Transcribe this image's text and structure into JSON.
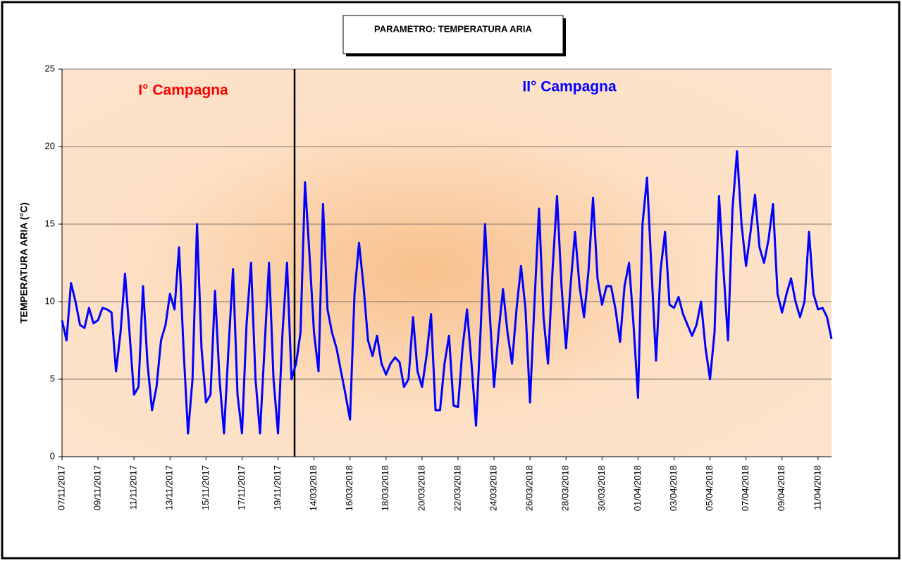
{
  "chart_data": {
    "type": "line",
    "title": "PARAMETRO: TEMPERATURA ARIA",
    "y_label": "TEMPERATURA ARIA (°C)",
    "annotations": [
      {
        "text": "I° Campagna",
        "color": "#ff0000"
      },
      {
        "text": "II° Campagna",
        "color": "#0000ff"
      }
    ],
    "categories": [
      "07/11/2017",
      null,
      null,
      null,
      null,
      null,
      null,
      null,
      "09/11/2017",
      null,
      null,
      null,
      null,
      null,
      null,
      null,
      "11/11/2017",
      null,
      null,
      null,
      null,
      null,
      null,
      null,
      "13/11/2017",
      null,
      null,
      null,
      null,
      null,
      null,
      null,
      "15/11/2017",
      null,
      null,
      null,
      null,
      null,
      null,
      null,
      "17/11/2017",
      null,
      null,
      null,
      null,
      null,
      null,
      null,
      "19/11/2017",
      null,
      null,
      null,
      null,
      null,
      null,
      null,
      "14/03/2018",
      null,
      null,
      null,
      null,
      null,
      null,
      null,
      "16/03/2018",
      null,
      null,
      null,
      null,
      null,
      null,
      null,
      "18/03/2018",
      null,
      null,
      null,
      null,
      null,
      null,
      null,
      "20/03/2018",
      null,
      null,
      null,
      null,
      null,
      null,
      null,
      "22/03/2018",
      null,
      null,
      null,
      null,
      null,
      null,
      null,
      "24/03/2018",
      null,
      null,
      null,
      null,
      null,
      null,
      null,
      "26/03/2018",
      null,
      null,
      null,
      null,
      null,
      null,
      null,
      "28/03/2018",
      null,
      null,
      null,
      null,
      null,
      null,
      null,
      "30/03/2018",
      null,
      null,
      null,
      null,
      null,
      null,
      null,
      "01/04/2018",
      null,
      null,
      null,
      null,
      null,
      null,
      null,
      "03/04/2018",
      null,
      null,
      null,
      null,
      null,
      null,
      null,
      "05/04/2018",
      null,
      null,
      null,
      null,
      null,
      null,
      null,
      "07/04/2018",
      null,
      null,
      null,
      null,
      null,
      null,
      null,
      "09/04/2018",
      null,
      null,
      null,
      null,
      null,
      null,
      null,
      "11/04/2018",
      null,
      null,
      null
    ],
    "series": [
      {
        "color": "#0000ff",
        "values": [
          8.8,
          7.5,
          11.2,
          10,
          8.5,
          8.3,
          9.6,
          8.6,
          8.8,
          9.6,
          9.5,
          9.3,
          5.5,
          8,
          11.8,
          8,
          4,
          4.5,
          11,
          6,
          3,
          4.5,
          7.5,
          8.5,
          10.5,
          9.5,
          13.5,
          7,
          1.5,
          5,
          15,
          7,
          3.5,
          4,
          10.7,
          5,
          1.5,
          7,
          12.1,
          4,
          1.5,
          8.5,
          12.5,
          5,
          1.5,
          7,
          12.5,
          5,
          1.5,
          8,
          12.5,
          5,
          6,
          8,
          17.7,
          13,
          8,
          5.5,
          16.3,
          9.5,
          8,
          7,
          5.5,
          4,
          2.4,
          10.5,
          13.8,
          11,
          7.5,
          6.5,
          7.8,
          6,
          5.3,
          6,
          6.4,
          6.1,
          4.5,
          5,
          9,
          5.5,
          4.5,
          6.5,
          9.2,
          3,
          3,
          6,
          7.8,
          3.3,
          3.2,
          7,
          9.5,
          6,
          2,
          8,
          15,
          9.5,
          4.5,
          8,
          10.8,
          8,
          6,
          9.5,
          12.3,
          9.5,
          3.5,
          10,
          16,
          9,
          6,
          12,
          16.8,
          11,
          7,
          11,
          14.5,
          11,
          9,
          12,
          16.7,
          11.5,
          9.8,
          11,
          11,
          9.5,
          7.4,
          11,
          12.5,
          8.5,
          3.8,
          15,
          18,
          12,
          6.2,
          12,
          14.5,
          9.8,
          9.6,
          10.3,
          9.2,
          8.5,
          7.8,
          8.5,
          10,
          7,
          5,
          8,
          16.8,
          12,
          7.5,
          16,
          19.7,
          15,
          12.3,
          14.5,
          16.9,
          13.5,
          12.5,
          14,
          16.3,
          10.5,
          9.3,
          10.5,
          11.5,
          10,
          9,
          10,
          14.5,
          10.5,
          9.5,
          9.6,
          9,
          7.6
        ]
      }
    ],
    "ylim": [
      0,
      25
    ],
    "yticks": [
      0,
      5,
      10,
      15,
      20,
      25
    ],
    "grid": true
  }
}
